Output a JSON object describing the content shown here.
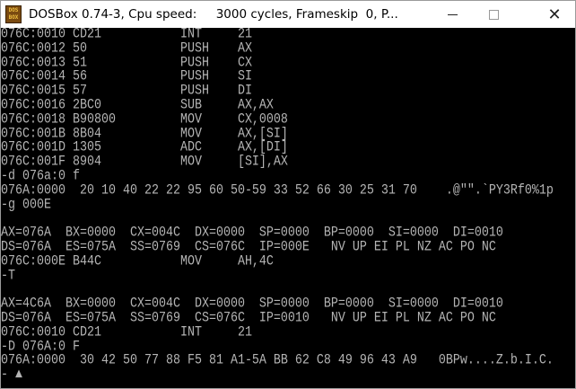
{
  "window": {
    "title": "DOSBox 0.74-3, Cpu speed:     3000 cycles, Frameskip  0, P...",
    "icon": "dosbox-icon",
    "icon_text": [
      "DOS",
      "BOX"
    ],
    "controls": {
      "minimize": "minimize-icon",
      "maximize": "maximize-icon",
      "close": "close-icon"
    },
    "close_glyph": "✕"
  },
  "colors": {
    "screen_bg": "#000000",
    "text": "#b4b4b4",
    "titlebar": "#ffffff"
  },
  "terminal": {
    "lines": [
      "076C:0010 CD21           INT     21",
      "076C:0012 50             PUSH    AX",
      "076C:0013 51             PUSH    CX",
      "076C:0014 56             PUSH    SI",
      "076C:0015 57             PUSH    DI",
      "076C:0016 2BC0           SUB     AX,AX",
      "076C:0018 B90800         MOV     CX,0008",
      "076C:001B 8B04           MOV     AX,[SI]",
      "076C:001D 1305           ADC     AX,[DI]",
      "076C:001F 8904           MOV     [SI],AX",
      "-d 076a:0 f",
      "076A:0000  20 10 40 22 22 95 60 50-59 33 52 66 30 25 31 70    .@\"\".`PY3Rf0%1p",
      "-g 000E",
      "",
      "AX=076A  BX=0000  CX=004C  DX=0000  SP=0000  BP=0000  SI=0000  DI=0010",
      "DS=076A  ES=075A  SS=0769  CS=076C  IP=000E   NV UP EI PL NZ AC PO NC",
      "076C:000E B44C           MOV     AH,4C",
      "-T",
      "",
      "AX=4C6A  BX=0000  CX=004C  DX=0000  SP=0000  BP=0000  SI=0000  DI=0010",
      "DS=076A  ES=075A  SS=0769  CS=076C  IP=0010   NV UP EI PL NZ AC PO NC",
      "076C:0010 CD21           INT     21",
      "-D 076A:0 F",
      "076A:0000  30 42 50 77 88 F5 81 A1-5A BB 62 C8 49 96 43 A9   0BPw....Z.b.I.C.",
      "- ▲"
    ]
  }
}
